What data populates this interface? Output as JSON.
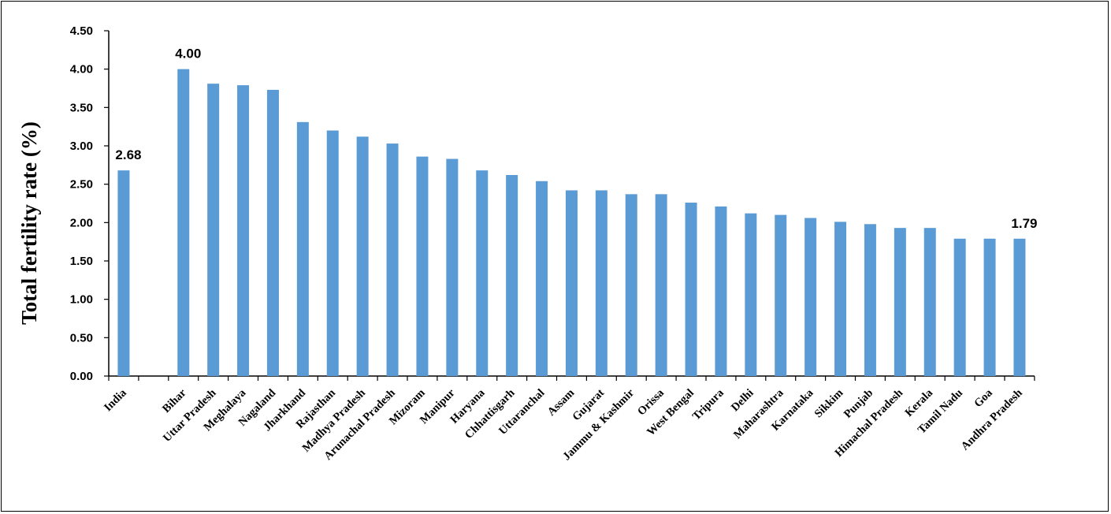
{
  "chart_data": {
    "type": "bar",
    "title": "",
    "xlabel": "",
    "ylabel": "Total fertility rate (%)",
    "ylim": [
      0,
      4.5
    ],
    "yticks": [
      "0.00",
      "0.50",
      "1.00",
      "1.50",
      "2.00",
      "2.50",
      "3.00",
      "3.50",
      "4.00",
      "4.50"
    ],
    "grid": false,
    "bar_color": "#5b9bd5",
    "categories": [
      "India",
      "",
      "Bihar",
      "Uttar Pradesh",
      "Meghalaya",
      "Nagaland",
      "Jharkhand",
      "Rajasthan",
      "Madhya Pradesh",
      "Arunachal Pradesh",
      "Mizoram",
      "Manipur",
      "Haryana",
      "Chhattisgarh",
      "Uttaranchal",
      "Assam",
      "Gujarat",
      "Jammu & Kashmir",
      "Orissa",
      "West Bengal",
      "Tripura",
      "Delhi",
      "Maharashtra",
      "Karnataka",
      "Sikkim",
      "Punjab",
      "Himachal Pradesh",
      "Kerala",
      "Tamil Nadu",
      "Goa",
      "Andhra Pradesh"
    ],
    "values": [
      2.68,
      null,
      4.0,
      3.81,
      3.79,
      3.73,
      3.31,
      3.2,
      3.12,
      3.03,
      2.86,
      2.83,
      2.68,
      2.62,
      2.54,
      2.42,
      2.42,
      2.37,
      2.37,
      2.26,
      2.21,
      2.12,
      2.1,
      2.06,
      2.01,
      1.98,
      1.93,
      1.93,
      1.79,
      1.79,
      1.79
    ],
    "data_labels": [
      {
        "category": "India",
        "text": "2.68"
      },
      {
        "category": "Bihar",
        "text": "4.00"
      },
      {
        "category": "Andhra Pradesh",
        "text": "1.79"
      }
    ]
  }
}
